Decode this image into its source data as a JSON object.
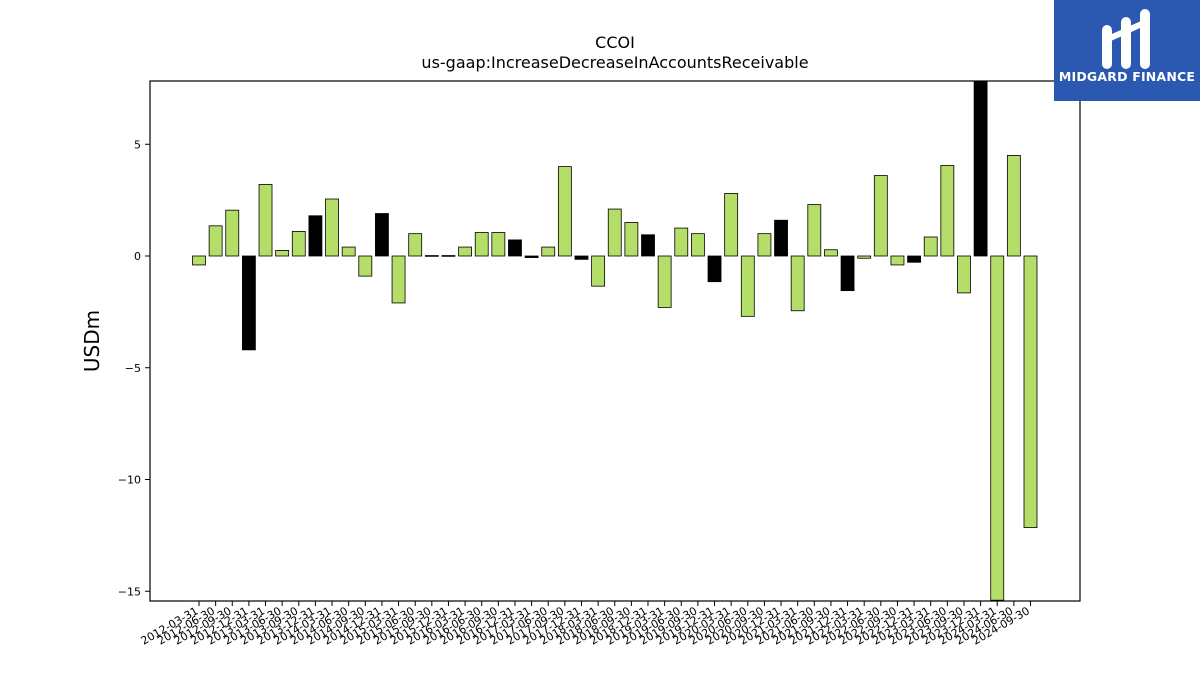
{
  "logo": {
    "text": "MIDGARD FINANCE",
    "background": "#2b58b0"
  },
  "chart_data": {
    "type": "bar",
    "title": "CCOI",
    "subtitle": "us-gaap:IncreaseDecreaseInAccountsReceivable",
    "xlabel": "",
    "ylabel": "USDm",
    "ylim": [
      -15.4,
      7.8
    ],
    "yticks": [
      5,
      0,
      -5,
      -10,
      -15
    ],
    "ytick_labels": [
      "5",
      "0",
      "−5",
      "−10",
      "−15"
    ],
    "grid": false,
    "colors": {
      "default": "#b5de68",
      "highlight": "#000000"
    },
    "categories": [
      "2012-03-31",
      "2012-06-30",
      "2012-09-30",
      "2012-12-31",
      "2013-03-31",
      "2013-06-30",
      "2013-09-30",
      "2013-12-31",
      "2014-03-31",
      "2014-06-30",
      "2014-09-30",
      "2014-12-31",
      "2015-03-31",
      "2015-06-30",
      "2015-09-30",
      "2015-12-31",
      "2016-03-31",
      "2016-06-30",
      "2016-09-30",
      "2016-12-31",
      "2017-03-31",
      "2017-06-30",
      "2017-09-30",
      "2017-12-31",
      "2018-03-31",
      "2018-06-30",
      "2018-09-30",
      "2018-12-31",
      "2019-03-31",
      "2019-06-30",
      "2019-09-30",
      "2019-12-31",
      "2020-03-31",
      "2020-06-30",
      "2020-09-30",
      "2020-12-31",
      "2021-03-31",
      "2021-06-30",
      "2021-09-30",
      "2021-12-31",
      "2022-03-31",
      "2022-06-30",
      "2022-09-30",
      "2022-12-31",
      "2023-03-31",
      "2023-06-30",
      "2023-09-30",
      "2023-12-31",
      "2024-03-31",
      "2024-06-30",
      "2024-09-30"
    ],
    "values": [
      -0.4,
      1.35,
      2.05,
      -4.2,
      3.2,
      0.25,
      1.1,
      1.8,
      2.55,
      0.4,
      -0.9,
      1.9,
      -2.1,
      1.0,
      0.02,
      0.02,
      0.4,
      1.05,
      1.05,
      0.72,
      -0.07,
      0.4,
      4.0,
      -0.15,
      -1.35,
      2.1,
      1.5,
      0.95,
      -2.3,
      1.25,
      1.0,
      -1.15,
      2.8,
      -2.7,
      1.0,
      1.6,
      -2.45,
      2.3,
      0.28,
      -1.55,
      -0.1,
      3.6,
      -0.4,
      -0.28,
      0.85,
      4.05,
      -1.65,
      7.8,
      -15.4,
      4.5,
      -12.15
    ],
    "highlight": [
      false,
      false,
      false,
      true,
      false,
      false,
      false,
      true,
      false,
      false,
      false,
      true,
      false,
      false,
      true,
      true,
      false,
      false,
      false,
      true,
      true,
      false,
      false,
      true,
      false,
      false,
      false,
      true,
      false,
      false,
      false,
      true,
      false,
      false,
      false,
      true,
      false,
      false,
      false,
      true,
      false,
      false,
      false,
      true,
      false,
      false,
      false,
      true,
      false,
      false,
      false
    ]
  }
}
